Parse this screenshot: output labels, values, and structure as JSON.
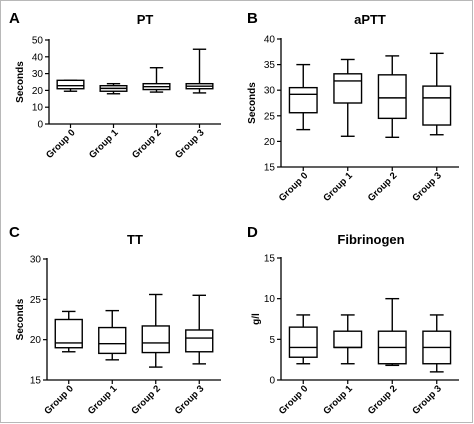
{
  "chart_data": [
    {
      "panel": "A",
      "type": "box",
      "title": "PT",
      "ylabel": "Seconds",
      "ylim": [
        0,
        50
      ],
      "yticks": [
        0,
        10,
        20,
        30,
        40,
        50
      ],
      "categories": [
        "Group 0",
        "Group 1",
        "Group 2",
        "Group 3"
      ],
      "boxes": [
        {
          "min": 19.5,
          "q1": 21,
          "median": 22.8,
          "q3": 26,
          "max": 26
        },
        {
          "min": 18,
          "q1": 19.5,
          "median": 21.2,
          "q3": 22.8,
          "max": 24
        },
        {
          "min": 19,
          "q1": 20.5,
          "median": 22.2,
          "q3": 24,
          "max": 33.5
        },
        {
          "min": 18.5,
          "q1": 21,
          "median": 22.5,
          "q3": 24,
          "max": 44.5
        }
      ]
    },
    {
      "panel": "B",
      "type": "box",
      "title": "aPTT",
      "ylabel": "Seconds",
      "ylim": [
        15,
        40
      ],
      "yticks": [
        15,
        20,
        25,
        30,
        35,
        40
      ],
      "categories": [
        "Group 0",
        "Group 1",
        "Group 2",
        "Group 3"
      ],
      "boxes": [
        {
          "min": 22.3,
          "q1": 25.6,
          "median": 29.2,
          "q3": 30.5,
          "max": 35
        },
        {
          "min": 21,
          "q1": 27.5,
          "median": 31.8,
          "q3": 33.2,
          "max": 36
        },
        {
          "min": 20.8,
          "q1": 24.5,
          "median": 28.5,
          "q3": 33,
          "max": 36.7
        },
        {
          "min": 21.3,
          "q1": 23.2,
          "median": 28.5,
          "q3": 30.8,
          "max": 37.2
        }
      ]
    },
    {
      "panel": "C",
      "type": "box",
      "title": "TT",
      "ylabel": "Seconds",
      "ylim": [
        15,
        30
      ],
      "yticks": [
        15,
        20,
        25,
        30
      ],
      "categories": [
        "Group 0",
        "Group 1",
        "Group 2",
        "Group 3"
      ],
      "boxes": [
        {
          "min": 18.5,
          "q1": 19,
          "median": 19.6,
          "q3": 22.5,
          "max": 23.5
        },
        {
          "min": 17.5,
          "q1": 18.3,
          "median": 19.5,
          "q3": 21.5,
          "max": 23.6
        },
        {
          "min": 16.6,
          "q1": 18.4,
          "median": 19.6,
          "q3": 21.7,
          "max": 25.6
        },
        {
          "min": 17,
          "q1": 18.5,
          "median": 20.2,
          "q3": 21.2,
          "max": 25.5
        }
      ]
    },
    {
      "panel": "D",
      "type": "box",
      "title": "Fibrinogen",
      "ylabel": "g/l",
      "ylim": [
        0,
        15
      ],
      "yticks": [
        0,
        5,
        10,
        15
      ],
      "categories": [
        "Group 0",
        "Group 1",
        "Group 2",
        "Group 3"
      ],
      "boxes": [
        {
          "min": 2,
          "q1": 2.8,
          "median": 4,
          "q3": 6.5,
          "max": 8
        },
        {
          "min": 2,
          "q1": 4,
          "median": 4,
          "q3": 6,
          "max": 8
        },
        {
          "min": 1.8,
          "q1": 2,
          "median": 4,
          "q3": 6,
          "max": 10
        },
        {
          "min": 1,
          "q1": 2,
          "median": 4,
          "q3": 6,
          "max": 8
        }
      ]
    }
  ]
}
